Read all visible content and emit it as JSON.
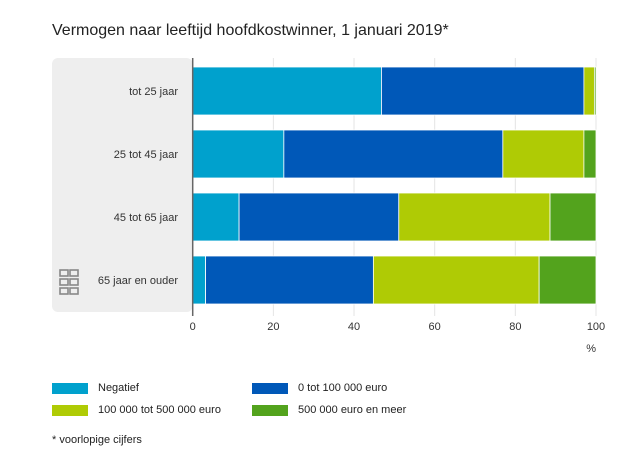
{
  "chart_data": {
    "type": "bar",
    "orientation": "horizontal",
    "stacked": true,
    "title": "Vermogen naar leeftijd hoofdkostwinner, 1 januari 2019*",
    "categories": [
      "tot 25 jaar",
      "25 tot 45 jaar",
      "45 tot 65 jaar",
      "65 jaar en ouder"
    ],
    "series": [
      {
        "name": "Negatief",
        "color": "#00a1cd",
        "values": [
          46.8,
          22.6,
          11.5,
          3.2
        ]
      },
      {
        "name": "0 tot 100 000 euro",
        "color": "#0058b8",
        "values": [
          50.2,
          54.3,
          39.6,
          41.6
        ]
      },
      {
        "name": "100 000 tot 500 000 euro",
        "color": "#afcb05",
        "values": [
          2.6,
          20.1,
          37.5,
          41.1
        ]
      },
      {
        "name": "500 000 euro en meer",
        "color": "#53a31d",
        "values": [
          0.4,
          3.0,
          11.4,
          14.1
        ]
      }
    ],
    "xlabel": "%",
    "xlim": [
      0,
      100
    ],
    "xticks": [
      0,
      20,
      40,
      60,
      80,
      100
    ],
    "grid": true,
    "legend_position": "bottom",
    "footnote": "* voorlopige cijfers"
  }
}
